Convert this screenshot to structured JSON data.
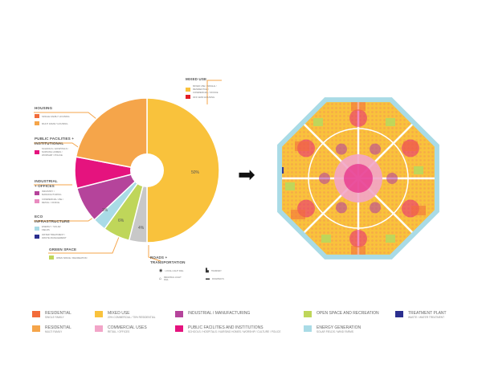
{
  "chart_data": {
    "type": "pie",
    "categories": [
      "Mixed use",
      "Roads + transportation",
      "Green space",
      "Energy infrastructure",
      "Industrial + offices",
      "Public facilities + institutional",
      "Housing"
    ],
    "values": [
      50,
      4,
      6,
      3,
      8,
      7,
      22
    ],
    "colors": [
      "#f9c23c",
      "#c8c8c8",
      "#bfd65a",
      "#a9dbe6",
      "#b5449b",
      "#e5137e",
      "#f5a54a"
    ],
    "data_labels": [
      "50%",
      "4%",
      "6%",
      "3%",
      "",
      "",
      ""
    ]
  },
  "chart_labels": {
    "mixed_use": "MIXED USE",
    "housing": "HOUSING",
    "public": "PUBLIC FACILITIES +\nINSTITUTIONAL",
    "industrial": "INDUSTRIAL\n+ OFFICES",
    "energy": "ECO\nINFRASTRUCTURE",
    "green": "GREEN SPACE",
    "roads": "ROADS +\nTRANSPORTATION"
  },
  "sub_swatches": {
    "mixed_use": [
      {
        "color": "#f9c23c",
        "text": "MIXED USE / SINGLE / RESIDENTIAL / COMMERCIAL / OFFICE"
      },
      {
        "color": "#e31e24",
        "text": "OFF GRID HOUSING"
      }
    ],
    "housing": [
      {
        "color": "#f26b3a",
        "text": "SINGLE FAMILY HOUSING"
      },
      {
        "color": "#f5a54a",
        "text": "MULTI FAMILY HOUSING"
      }
    ],
    "public": [
      {
        "color": "#e5137e",
        "text": "SCHOOLS / HOSPITALS / NURSING HOMES / WORSHIP / POLICE"
      }
    ],
    "industrial": [
      {
        "color": "#b5449b",
        "text": "INDUSTRY / MANUFACTURING"
      },
      {
        "color": "#e98cc0",
        "text": "COMMERCIAL USE / RETAIL / OFFICE"
      }
    ],
    "energy": [
      {
        "color": "#a9dbe6",
        "text": "ENERGY / SOLAR FIELDS"
      },
      {
        "color": "#2b2f8f",
        "text": "WATER TREATMENT / WASTE MANAGEMENT"
      }
    ],
    "green": [
      {
        "color": "#bfd65a",
        "text": "OPEN SPACE / RECREATION"
      }
    ]
  },
  "roads_icons": [
    {
      "glyph": "◉",
      "text": "LOCAL LIGHT RAIL"
    },
    {
      "glyph": "⌂",
      "text": "REGIONAL LIGHT RAIL"
    },
    {
      "glyph": "▙",
      "text": "TRAMWAY"
    },
    {
      "glyph": "▬",
      "text": "ROADWAYS"
    }
  ],
  "arrow": "➡",
  "legend": [
    {
      "color": "#f26b3a",
      "title": "RESIDENTIAL",
      "sub": "SINGLE FAMILY"
    },
    {
      "color": "#f5a54a",
      "title": "RESIDENTIAL",
      "sub": "MULTI FAMILY"
    },
    {
      "color": "#f9c23c",
      "title": "MIXED USE",
      "sub": "20% COMMERCIAL / 75% RESIDENTIAL"
    },
    {
      "color": "#f2a5c8",
      "title": "COMMERCIAL USES",
      "sub": "RETAIL / OFFICES"
    },
    {
      "color": "#b5449b",
      "title": "INDUSTRIAL / MANUFACTURING",
      "sub": ""
    },
    {
      "color": "#e5137e",
      "title": "PUBLIC FACILITIES and INSTITUTIONS",
      "sub": "SCHOOLS / HOSPITALS / NURSING HOMES / WORSHIP / CULTURE / POLICE"
    },
    {
      "color": "#bfd65a",
      "title": "OPEN SPACE AND RECREATION",
      "sub": ""
    },
    {
      "color": "#a9dbe6",
      "title": "ENERGY GENERATION",
      "sub": "SOLAR FIELDS / WIND FARMS"
    },
    {
      "color": "#2b2f8f",
      "title": "TREATMENT PLANT",
      "sub": "WASTE / WATER TREATMENT"
    }
  ]
}
